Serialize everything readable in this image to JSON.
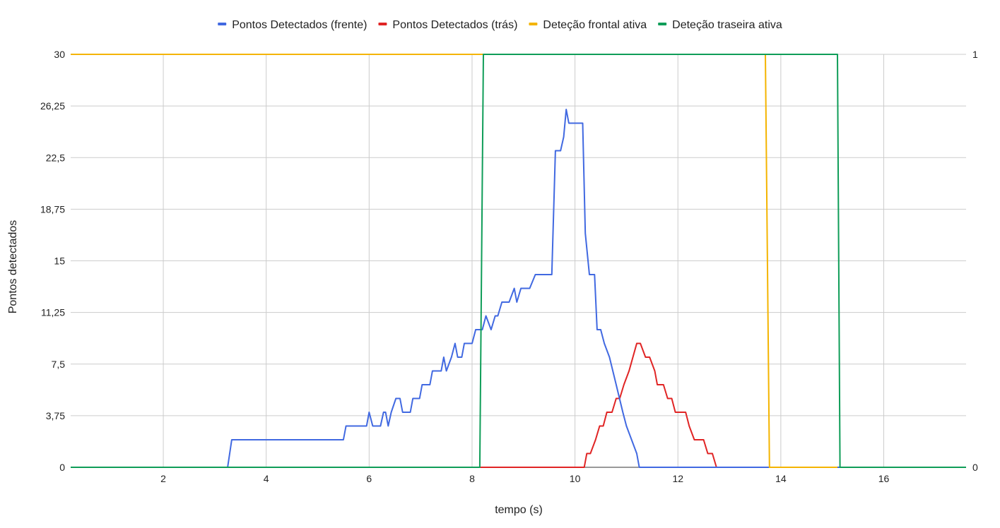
{
  "chart_data": {
    "type": "line",
    "title": "",
    "xlabel": "tempo (s)",
    "ylabel": "Pontos detectados",
    "xlim": [
      0.2,
      17.6
    ],
    "ylim": [
      0,
      30
    ],
    "y2lim": [
      0,
      1
    ],
    "x_ticks": [
      "2",
      "4",
      "6",
      "8",
      "10",
      "12",
      "14",
      "16"
    ],
    "x_tick_values": [
      2,
      4,
      6,
      8,
      10,
      12,
      14,
      16
    ],
    "y_ticks": [
      "0",
      "3,75",
      "7,5",
      "11,25",
      "15",
      "18,75",
      "22,5",
      "26,25",
      "30"
    ],
    "y_tick_values": [
      0,
      3.75,
      7.5,
      11.25,
      15,
      18.75,
      22.5,
      26.25,
      30
    ],
    "y2_ticks": [
      "0",
      "1"
    ],
    "y2_tick_values": [
      0,
      1
    ],
    "grid": true,
    "legend_position": "top",
    "series": [
      {
        "name": "Pontos Detectados (frente)",
        "color": "#4169e1",
        "axis": "left",
        "points": [
          [
            0.2,
            0
          ],
          [
            3.25,
            0
          ],
          [
            3.33,
            2
          ],
          [
            5.5,
            2
          ],
          [
            5.55,
            3
          ],
          [
            5.95,
            3
          ],
          [
            6.0,
            4
          ],
          [
            6.07,
            3
          ],
          [
            6.22,
            3
          ],
          [
            6.28,
            4
          ],
          [
            6.32,
            4
          ],
          [
            6.37,
            3
          ],
          [
            6.43,
            4
          ],
          [
            6.52,
            5
          ],
          [
            6.6,
            5
          ],
          [
            6.65,
            4
          ],
          [
            6.8,
            4
          ],
          [
            6.85,
            5
          ],
          [
            6.98,
            5
          ],
          [
            7.03,
            6
          ],
          [
            7.18,
            6
          ],
          [
            7.23,
            7
          ],
          [
            7.4,
            7
          ],
          [
            7.45,
            8
          ],
          [
            7.5,
            7
          ],
          [
            7.6,
            8
          ],
          [
            7.67,
            9
          ],
          [
            7.72,
            8
          ],
          [
            7.8,
            8
          ],
          [
            7.85,
            9
          ],
          [
            8.0,
            9
          ],
          [
            8.07,
            10
          ],
          [
            8.2,
            10
          ],
          [
            8.27,
            11
          ],
          [
            8.37,
            10
          ],
          [
            8.45,
            11
          ],
          [
            8.5,
            11
          ],
          [
            8.58,
            12
          ],
          [
            8.72,
            12
          ],
          [
            8.82,
            13
          ],
          [
            8.87,
            12
          ],
          [
            8.95,
            13
          ],
          [
            9.12,
            13
          ],
          [
            9.23,
            14
          ],
          [
            9.55,
            14
          ],
          [
            9.62,
            23
          ],
          [
            9.72,
            23
          ],
          [
            9.78,
            24
          ],
          [
            9.83,
            26
          ],
          [
            9.88,
            25
          ],
          [
            10.15,
            25
          ],
          [
            10.2,
            17
          ],
          [
            10.28,
            14
          ],
          [
            10.38,
            14
          ],
          [
            10.43,
            10
          ],
          [
            10.5,
            10
          ],
          [
            10.57,
            9
          ],
          [
            10.67,
            8
          ],
          [
            10.8,
            6
          ],
          [
            10.93,
            4
          ],
          [
            11.0,
            3
          ],
          [
            11.1,
            2
          ],
          [
            11.2,
            1
          ],
          [
            11.25,
            0
          ],
          [
            17.6,
            0
          ]
        ]
      },
      {
        "name": "Pontos Detectados (trás)",
        "color": "#e02424",
        "axis": "left",
        "points": [
          [
            8.15,
            0
          ],
          [
            10.18,
            0
          ],
          [
            10.23,
            1
          ],
          [
            10.3,
            1
          ],
          [
            10.4,
            2
          ],
          [
            10.48,
            3
          ],
          [
            10.55,
            3
          ],
          [
            10.62,
            4
          ],
          [
            10.72,
            4
          ],
          [
            10.8,
            5
          ],
          [
            10.87,
            5
          ],
          [
            10.95,
            6
          ],
          [
            11.05,
            7
          ],
          [
            11.2,
            9
          ],
          [
            11.27,
            9
          ],
          [
            11.37,
            8
          ],
          [
            11.45,
            8
          ],
          [
            11.55,
            7
          ],
          [
            11.6,
            6
          ],
          [
            11.72,
            6
          ],
          [
            11.8,
            5
          ],
          [
            11.88,
            5
          ],
          [
            11.95,
            4
          ],
          [
            12.15,
            4
          ],
          [
            12.22,
            3
          ],
          [
            12.32,
            2
          ],
          [
            12.5,
            2
          ],
          [
            12.58,
            1
          ],
          [
            12.67,
            1
          ],
          [
            12.75,
            0
          ],
          [
            13.75,
            0
          ]
        ]
      },
      {
        "name": "Deteção frontal ativa",
        "color": "#f4b400",
        "axis": "right",
        "points": [
          [
            0.2,
            1
          ],
          [
            13.7,
            1
          ],
          [
            13.78,
            0
          ],
          [
            15.1,
            0
          ]
        ]
      },
      {
        "name": "Deteção traseira ativa",
        "color": "#0f9d58",
        "axis": "right",
        "points": [
          [
            0.2,
            0
          ],
          [
            8.15,
            0
          ],
          [
            8.22,
            1
          ],
          [
            15.1,
            1
          ],
          [
            15.15,
            0
          ],
          [
            17.6,
            0
          ]
        ]
      }
    ]
  }
}
